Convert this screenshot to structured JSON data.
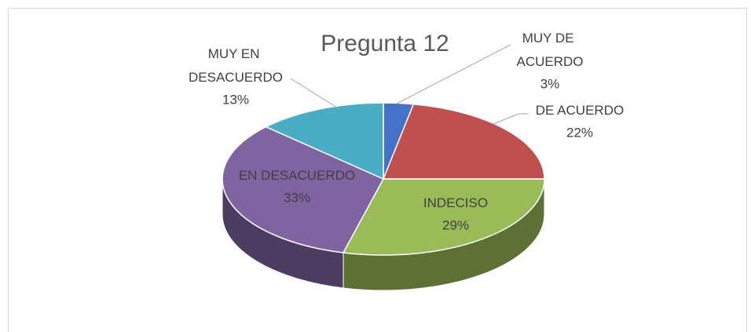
{
  "chart_data": {
    "type": "pie",
    "title": "Pregunta 12",
    "categories": [
      "MUY DE ACUERDO",
      "DE ACUERDO",
      "INDECISO",
      "EN DESACUERDO",
      "MUY EN DESACUERDO"
    ],
    "values": [
      3,
      22,
      29,
      33,
      13
    ],
    "value_labels": [
      "3%",
      "22%",
      "29%",
      "33%",
      "13%"
    ],
    "colors": [
      "#4472c4",
      "#c0504d",
      "#9bbb59",
      "#8064a2",
      "#4bacc6"
    ]
  }
}
